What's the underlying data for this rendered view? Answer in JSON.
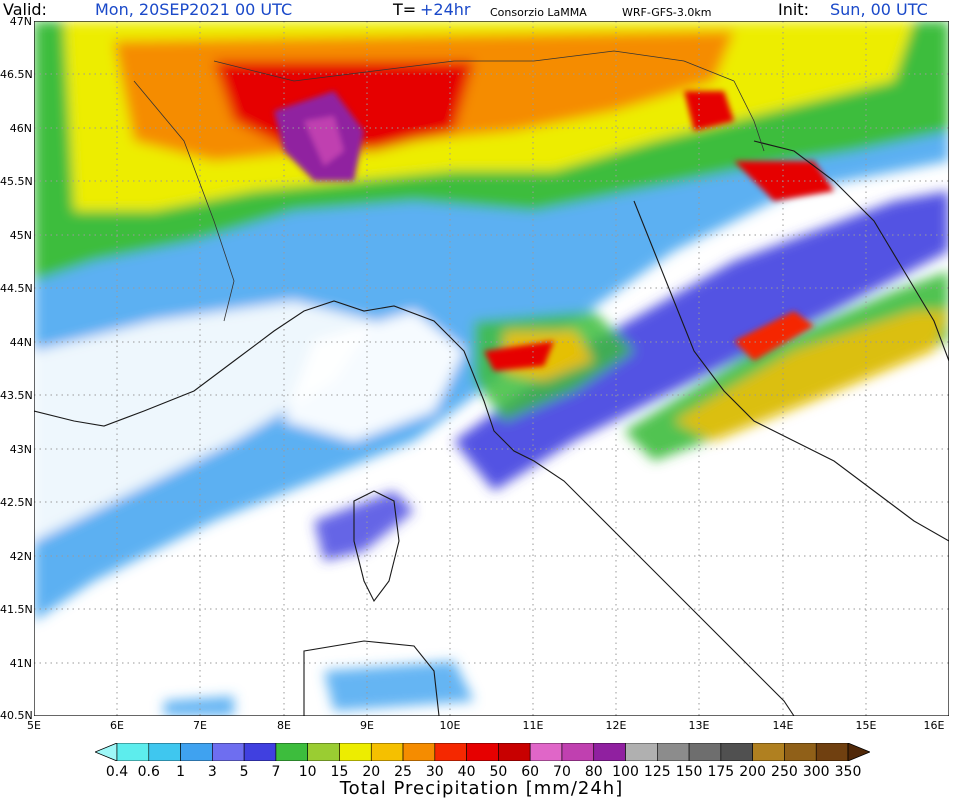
{
  "header": {
    "valid_label": "Valid:",
    "valid_value": "Mon, 20SEP2021   00 UTC",
    "t_label": "T=",
    "t_value": "+24hr",
    "org": "Consorzio LaMMA",
    "model": "WRF-GFS-3.0km",
    "init_label": "Init:",
    "init_value": "Sun, 00 UTC"
  },
  "axes": {
    "lat_labels": [
      "47N",
      "46.5N",
      "46N",
      "45.5N",
      "45N",
      "44.5N",
      "44N",
      "43.5N",
      "43N",
      "42.5N",
      "42N",
      "41.5N",
      "41N",
      "40.5N"
    ],
    "lon_labels": [
      "5E",
      "6E",
      "7E",
      "8E",
      "9E",
      "10E",
      "11E",
      "12E",
      "13E",
      "14E",
      "15E",
      "16E"
    ]
  },
  "colorbar": {
    "title": "Total Precipitation [mm/24h]",
    "levels": [
      "0.4",
      "0.6",
      "1",
      "3",
      "5",
      "7",
      "10",
      "15",
      "20",
      "25",
      "30",
      "40",
      "50",
      "60",
      "70",
      "80",
      "100",
      "125",
      "150",
      "175",
      "200",
      "250",
      "300",
      "350"
    ],
    "colors": [
      "#9ef7f7",
      "#5deded",
      "#3fc7ef",
      "#3fa2f0",
      "#6e6ef0",
      "#4040e0",
      "#3dbd3d",
      "#9acd32",
      "#eded00",
      "#f5c000",
      "#f58c00",
      "#f52800",
      "#e60000",
      "#c80000",
      "#e066c8",
      "#c040b0",
      "#9020a0",
      "#b0b0b0",
      "#8c8c8c",
      "#6e6e6e",
      "#505050",
      "#b08020",
      "#906018",
      "#704010",
      "#502808"
    ]
  }
}
